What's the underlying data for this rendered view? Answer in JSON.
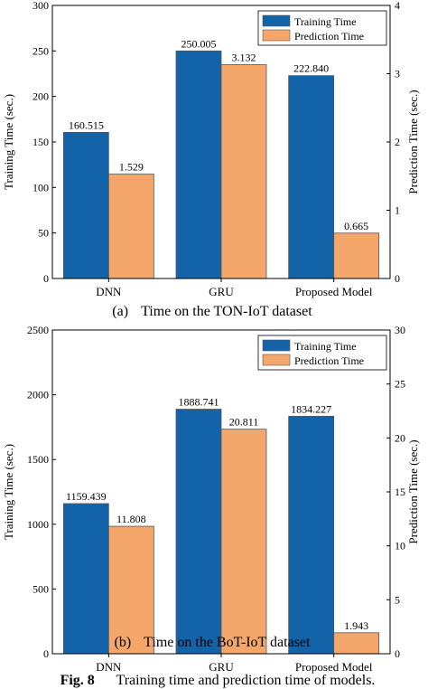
{
  "figure_caption": {
    "label": "Fig. 8",
    "text": "Training time and prediction time of models."
  },
  "colors": {
    "training": "#1363a8",
    "prediction": "#f5a66b"
  },
  "chart_data": [
    {
      "type": "bar",
      "panel_label": "(a)",
      "title": "Time on the TON-IoT dataset",
      "categories": [
        "DNN",
        "GRU",
        "Proposed Model"
      ],
      "ylabel": "Training Time (sec.)",
      "y2label": "Prediction Time (sec.)",
      "ylim": [
        0,
        300
      ],
      "yticks": [
        0,
        50,
        100,
        150,
        200,
        250,
        300
      ],
      "y2lim": [
        0,
        4
      ],
      "y2ticks": [
        0,
        1,
        2,
        3,
        4
      ],
      "legend_position": "top-right",
      "grid": false,
      "series": [
        {
          "name": "Training Time",
          "axis": "left",
          "color": "#1363a8",
          "values": [
            160.515,
            250.005,
            222.84
          ],
          "labels": [
            "160.515",
            "250.005",
            "222.840"
          ]
        },
        {
          "name": "Prediction Time",
          "axis": "right",
          "color": "#f5a66b",
          "values": [
            1.529,
            3.132,
            0.665
          ],
          "labels": [
            "1.529",
            "3.132",
            "0.665"
          ]
        }
      ]
    },
    {
      "type": "bar",
      "panel_label": "(b)",
      "title": "Time on the BoT-IoT dataset",
      "categories": [
        "DNN",
        "GRU",
        "Proposed Model"
      ],
      "ylabel": "Training Time (sec.)",
      "y2label": "Prediction Time (sec.)",
      "ylim": [
        0,
        2500
      ],
      "yticks": [
        0,
        500,
        1000,
        1500,
        2000,
        2500
      ],
      "y2lim": [
        0,
        30
      ],
      "y2ticks": [
        0,
        5,
        10,
        15,
        20,
        25,
        30
      ],
      "legend_position": "top-right",
      "grid": false,
      "series": [
        {
          "name": "Training Time",
          "axis": "left",
          "color": "#1363a8",
          "values": [
            1159.439,
            1888.741,
            1834.227
          ],
          "labels": [
            "1159.439",
            "1888.741",
            "1834.227"
          ]
        },
        {
          "name": "Prediction Time",
          "axis": "right",
          "color": "#f5a66b",
          "values": [
            11.808,
            20.811,
            1.943
          ],
          "labels": [
            "11.808",
            "20.811",
            "1.943"
          ]
        }
      ]
    }
  ]
}
